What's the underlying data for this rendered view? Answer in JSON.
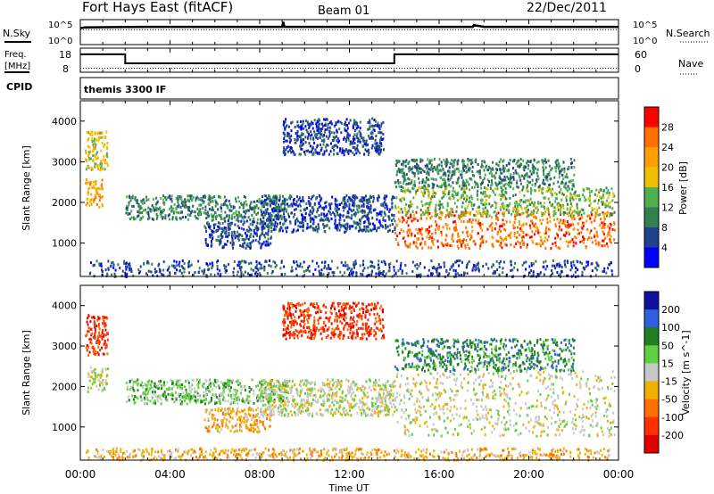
{
  "header": {
    "title": "Fort Hays East (fitACF)",
    "beam": "Beam 01",
    "date": "22/Dec/2011"
  },
  "panel_labels": {
    "nsky": "N.Sky",
    "nsearch": "N.Search",
    "freq_line1": "Freq.",
    "freq_line2": "[MHz]",
    "nave": "Nave",
    "cpid": "CPID",
    "cpid_value": "themis 3300 IF"
  },
  "noise_ticks": {
    "left": [
      "10^5",
      "10^0"
    ],
    "right": [
      "10^5",
      "10^0"
    ]
  },
  "freq_ticks": {
    "left": [
      "18",
      "8"
    ],
    "right": [
      "60",
      "0"
    ]
  },
  "chart_data": [
    {
      "type": "line",
      "title": "N.Sky / N.Search",
      "xlim": [
        0,
        24
      ],
      "series": [
        {
          "name": "N.Sky",
          "x": [
            0,
            0.1,
            0.2,
            3,
            6,
            9,
            9.05,
            9.1,
            12,
            15,
            17.5,
            17.55,
            18,
            21,
            24
          ],
          "y": [
            3.6,
            3.7,
            3.8,
            3.9,
            3.9,
            3.9,
            5.0,
            3.9,
            3.9,
            3.9,
            3.9,
            4.3,
            3.9,
            3.9,
            3.9
          ]
        },
        {
          "name": "N.Search",
          "x": [
            0,
            24
          ],
          "y": [
            3.3,
            3.3
          ]
        }
      ]
    },
    {
      "type": "line",
      "title": "Freq. / Nave",
      "xlim": [
        0,
        24
      ],
      "series": [
        {
          "name": "Freq.",
          "x": [
            0,
            2,
            2,
            14,
            14,
            24
          ],
          "y": [
            16.4,
            16.4,
            11.2,
            11.2,
            16.4,
            16.4
          ]
        },
        {
          "name": "Nave",
          "x": [
            0,
            24
          ],
          "y": [
            10,
            10
          ]
        }
      ]
    },
    {
      "type": "heatmap",
      "xlabel": "Time UT",
      "ylabel": "Slant Range [km]",
      "colorbar_label": "Power [dB]",
      "xlim": [
        0,
        24
      ],
      "ylim": [
        180,
        4500
      ],
      "colorbar_ticks": [
        "28",
        "24",
        "20",
        "16",
        "12",
        "8",
        "4"
      ],
      "colorbar_colors": [
        "#ff0000",
        "#ff7000",
        "#ffa000",
        "#f0c000",
        "#50b050",
        "#308050",
        "#204090",
        "#0000ff"
      ],
      "regions": [
        {
          "t": [
            0.2,
            1.0
          ],
          "r": [
            1900,
            2600
          ],
          "level": 5
        },
        {
          "t": [
            0.2,
            1.2
          ],
          "r": [
            2800,
            3800
          ],
          "level": 4
        },
        {
          "t": [
            2.0,
            9.2
          ],
          "r": [
            1600,
            2200
          ],
          "level": 2
        },
        {
          "t": [
            5.5,
            8.5
          ],
          "r": [
            900,
            1600
          ],
          "level": 1
        },
        {
          "t": [
            8.0,
            14.0
          ],
          "r": [
            1300,
            2200
          ],
          "level": 1
        },
        {
          "t": [
            9.0,
            13.5
          ],
          "r": [
            3200,
            4100
          ],
          "level": 1
        },
        {
          "t": [
            14.0,
            23.8
          ],
          "r": [
            900,
            1800
          ],
          "level": 6
        },
        {
          "t": [
            14.0,
            23.8
          ],
          "r": [
            1700,
            2400
          ],
          "level": 3
        },
        {
          "t": [
            14.0,
            22.0
          ],
          "r": [
            2400,
            3100
          ],
          "level": 2
        },
        {
          "t": [
            0.2,
            23.8
          ],
          "r": [
            200,
            600
          ],
          "level": 1
        }
      ]
    },
    {
      "type": "heatmap",
      "xlabel": "Time UT",
      "ylabel": "Slant Range [km]",
      "colorbar_label": "Velocity [m s^-1]",
      "xlim": [
        0,
        24
      ],
      "ylim": [
        180,
        4500
      ],
      "colorbar_ticks": [
        "200",
        "100",
        "50",
        "15",
        "-15",
        "-50",
        "-100",
        "-200"
      ],
      "colorbar_colors": [
        "#1010a0",
        "#3060e0",
        "#208020",
        "#60d040",
        "#c8c8c8",
        "#f0b000",
        "#ff7000",
        "#ff3000",
        "#e00000"
      ],
      "regions": [
        {
          "t": [
            0.2,
            1.2
          ],
          "r": [
            2800,
            3800
          ],
          "level": 7
        },
        {
          "t": [
            0.3,
            1.2
          ],
          "r": [
            1900,
            2500
          ],
          "level": 4
        },
        {
          "t": [
            2.0,
            9.2
          ],
          "r": [
            1600,
            2200
          ],
          "level": 3
        },
        {
          "t": [
            5.5,
            8.5
          ],
          "r": [
            900,
            1500
          ],
          "level": 5
        },
        {
          "t": [
            8.0,
            14.0
          ],
          "r": [
            1300,
            2200
          ],
          "level": 4
        },
        {
          "t": [
            9.0,
            13.5
          ],
          "r": [
            3200,
            4100
          ],
          "level": 7
        },
        {
          "t": [
            14.0,
            23.8
          ],
          "r": [
            800,
            2400
          ],
          "level": 4
        },
        {
          "t": [
            14.0,
            22.0
          ],
          "r": [
            2400,
            3200
          ],
          "level": 2
        },
        {
          "t": [
            0.2,
            23.8
          ],
          "r": [
            200,
            500
          ],
          "level": 5
        }
      ]
    }
  ],
  "x_ticks": [
    "00:00",
    "04:00",
    "08:00",
    "12:00",
    "16:00",
    "20:00",
    "00:00"
  ],
  "range_ticks": [
    "4000",
    "3000",
    "2000",
    "1000"
  ],
  "x_label": "Time UT",
  "y_label": "Slant Range [km]"
}
